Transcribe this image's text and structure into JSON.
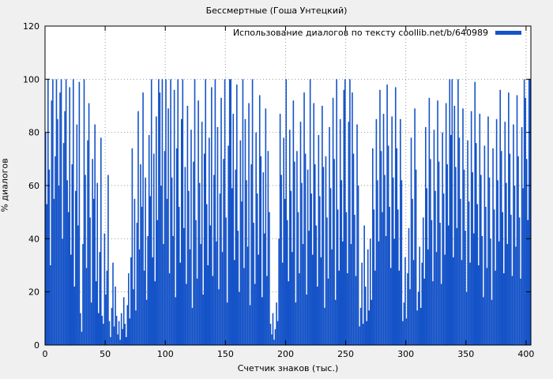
{
  "chart_data": {
    "type": "bar",
    "title": "Бессмертные (Гоша Унтецкий)",
    "legend": "Использование диалогов по тексту coollib.net/b/640989",
    "xlabel": "Счетчик знаков (тыс.)",
    "ylabel": "% диалогов",
    "xlim": [
      0,
      404
    ],
    "ylim": [
      0,
      120
    ],
    "xticks": [
      0,
      50,
      100,
      150,
      200,
      250,
      300,
      350,
      400
    ],
    "yticks": [
      0,
      20,
      40,
      60,
      80,
      100,
      120
    ],
    "grid": true,
    "legend_position": "top-right",
    "bar_color": "#1553c8",
    "background_color": "#f0f0f0",
    "plot_background": "#ffffff",
    "grid_color": "#9a9a9a",
    "x_step": 1,
    "values": [
      80,
      53,
      100,
      66,
      30,
      92,
      100,
      55,
      71,
      100,
      85,
      60,
      95,
      100,
      40,
      76,
      88,
      100,
      62,
      50,
      97,
      34,
      68,
      100,
      22,
      58,
      83,
      45,
      99,
      12,
      5,
      38,
      100,
      64,
      29,
      77,
      91,
      48,
      16,
      70,
      55,
      83,
      24,
      61,
      12,
      35,
      78,
      11,
      8,
      42,
      19,
      28,
      64,
      9,
      3,
      14,
      31,
      7,
      22,
      11,
      4,
      9,
      2,
      12,
      6,
      18,
      8,
      3,
      15,
      27,
      10,
      33,
      74,
      21,
      55,
      13,
      46,
      88,
      36,
      68,
      52,
      95,
      28,
      63,
      17,
      41,
      79,
      56,
      100,
      33,
      72,
      24,
      86,
      47,
      100,
      95,
      60,
      100,
      38,
      73,
      100,
      55,
      89,
      27,
      100,
      63,
      41,
      96,
      18,
      74,
      100,
      52,
      31,
      85,
      100,
      44,
      67,
      23,
      90,
      58,
      36,
      81,
      14,
      69,
      100,
      47,
      25,
      92,
      61,
      38,
      84,
      19,
      72,
      100,
      53,
      30,
      78,
      45,
      97,
      26,
      64,
      100,
      39,
      82,
      21,
      57,
      93,
      35,
      70,
      100,
      48,
      16,
      75,
      100,
      100,
      59,
      87,
      32,
      66,
      98,
      43,
      20,
      77,
      54,
      100,
      29,
      85,
      62,
      37,
      91,
      15,
      68,
      100,
      46,
      23,
      80,
      57,
      34,
      94,
      71,
      18,
      65,
      42,
      89,
      26,
      73,
      50,
      8,
      4,
      12,
      2,
      6,
      16,
      9,
      40,
      87,
      64,
      31,
      78,
      55,
      100,
      47,
      24,
      81,
      58,
      35,
      92,
      69,
      16,
      73,
      50,
      27,
      84,
      61,
      38,
      95,
      72,
      19,
      66,
      43,
      100,
      57,
      34,
      91,
      68,
      45,
      22,
      79,
      56,
      33,
      90,
      67,
      14,
      71,
      48,
      25,
      82,
      59,
      36,
      93,
      70,
      17,
      100,
      51,
      28,
      85,
      62,
      39,
      96,
      100,
      50,
      27,
      84,
      100,
      38,
      95,
      72,
      49,
      26,
      83,
      60,
      7,
      14,
      31,
      8,
      45,
      22,
      9,
      36,
      13,
      40,
      17,
      74,
      51,
      28,
      85,
      62,
      39,
      96,
      73,
      50,
      87,
      64,
      41,
      98,
      75,
      52,
      29,
      86,
      63,
      40,
      97,
      74,
      51,
      28,
      85,
      62,
      9,
      16,
      33,
      10,
      27,
      44,
      21,
      78,
      55,
      32,
      89,
      66,
      13,
      20,
      37,
      14,
      31,
      48,
      25,
      82,
      59,
      36,
      93,
      70,
      47,
      24,
      81,
      58,
      35,
      92,
      69,
      46,
      23,
      80,
      57,
      34,
      91,
      68,
      45,
      100,
      79,
      100,
      33,
      90,
      67,
      44,
      100,
      78,
      55,
      32,
      89,
      66,
      43,
      20,
      77,
      54,
      31,
      88,
      65,
      42,
      99,
      76,
      53,
      30,
      87,
      64,
      41,
      18,
      75,
      52,
      29,
      86,
      63,
      40,
      17,
      74,
      51,
      28,
      85,
      62,
      39,
      96,
      73,
      50,
      27,
      84,
      61,
      38,
      95,
      72,
      49,
      26,
      83,
      60,
      37,
      94,
      71,
      48,
      25,
      82,
      59,
      100,
      93,
      70,
      47,
      100,
      100
    ]
  }
}
